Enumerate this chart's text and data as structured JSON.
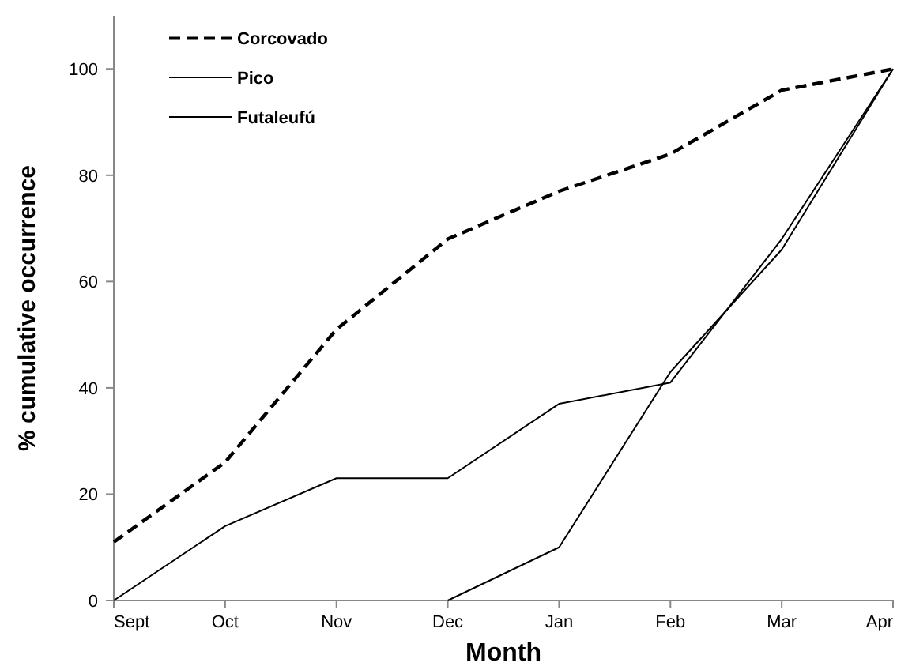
{
  "chart_data": {
    "type": "line",
    "xlabel": "Month",
    "ylabel": "% cumulative occurrence",
    "categories": [
      "Sept",
      "Oct",
      "Nov",
      "Dec",
      "Jan",
      "Feb",
      "Mar",
      "Apr"
    ],
    "series": [
      {
        "name": "Corcovado",
        "color": "#000000",
        "line_style": "dashed",
        "values": [
          11,
          26,
          51,
          68,
          77,
          84,
          96,
          100
        ]
      },
      {
        "name": "Pico",
        "color": "#000000",
        "line_style": "solid",
        "values": [
          0,
          14,
          23,
          23,
          37,
          41,
          68,
          100
        ]
      },
      {
        "name": "Futaleufú",
        "color": "#000000",
        "line_style": "solid",
        "values": [
          null,
          null,
          null,
          0,
          10,
          43,
          66,
          100
        ]
      }
    ],
    "ylim": [
      0,
      110
    ],
    "yticks": [
      0,
      20,
      40,
      60,
      80,
      100
    ],
    "grid": false,
    "legend": "top left",
    "marker": "none"
  }
}
